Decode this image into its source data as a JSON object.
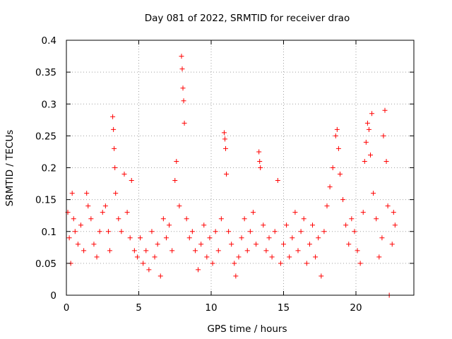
{
  "chart_data": {
    "type": "scatter",
    "title": "Day 081 of 2022, SRMTID for receiver drao",
    "xlabel": "GPS time / hours",
    "ylabel": "SRMTID / TECUs",
    "xlim": [
      0,
      24
    ],
    "ylim": [
      0,
      0.4
    ],
    "x_ticks": [
      0,
      5,
      10,
      15,
      20
    ],
    "x_tick_labels": [
      "0",
      "5",
      "10",
      "15",
      "20"
    ],
    "y_ticks": [
      0,
      0.05,
      0.1,
      0.15,
      0.2,
      0.25,
      0.3,
      0.35,
      0.4
    ],
    "y_tick_labels": [
      "0",
      "0.05",
      "0.1",
      "0.15",
      "0.2",
      "0.25",
      "0.3",
      "0.35",
      "0.4"
    ],
    "grid": true,
    "marker": "plus",
    "colors": {
      "points": "#ff0000",
      "grid": "#a0a0a0",
      "axes": "#000000"
    },
    "series": [
      {
        "name": "SRMTID",
        "points": [
          [
            0.1,
            0.13
          ],
          [
            0.2,
            0.09
          ],
          [
            0.3,
            0.05
          ],
          [
            0.4,
            0.16
          ],
          [
            0.5,
            0.12
          ],
          [
            0.6,
            0.1
          ],
          [
            0.8,
            0.08
          ],
          [
            1.0,
            0.11
          ],
          [
            1.2,
            0.07
          ],
          [
            1.4,
            0.16
          ],
          [
            1.5,
            0.14
          ],
          [
            1.7,
            0.12
          ],
          [
            1.9,
            0.08
          ],
          [
            2.1,
            0.06
          ],
          [
            2.3,
            0.1
          ],
          [
            2.5,
            0.13
          ],
          [
            2.7,
            0.14
          ],
          [
            2.9,
            0.1
          ],
          [
            3.0,
            0.07
          ],
          [
            3.2,
            0.28
          ],
          [
            3.25,
            0.26
          ],
          [
            3.3,
            0.23
          ],
          [
            3.35,
            0.2
          ],
          [
            3.4,
            0.16
          ],
          [
            3.6,
            0.12
          ],
          [
            3.8,
            0.1
          ],
          [
            4.0,
            0.19
          ],
          [
            4.2,
            0.13
          ],
          [
            4.4,
            0.09
          ],
          [
            4.5,
            0.18
          ],
          [
            4.7,
            0.07
          ],
          [
            4.9,
            0.06
          ],
          [
            5.1,
            0.09
          ],
          [
            5.3,
            0.05
          ],
          [
            5.5,
            0.07
          ],
          [
            5.7,
            0.04
          ],
          [
            5.9,
            0.1
          ],
          [
            6.1,
            0.06
          ],
          [
            6.3,
            0.08
          ],
          [
            6.5,
            0.03
          ],
          [
            6.7,
            0.12
          ],
          [
            6.9,
            0.09
          ],
          [
            7.1,
            0.11
          ],
          [
            7.3,
            0.07
          ],
          [
            7.5,
            0.18
          ],
          [
            7.6,
            0.21
          ],
          [
            7.8,
            0.14
          ],
          [
            7.95,
            0.375
          ],
          [
            8.0,
            0.355
          ],
          [
            8.05,
            0.325
          ],
          [
            8.1,
            0.305
          ],
          [
            8.15,
            0.27
          ],
          [
            8.3,
            0.12
          ],
          [
            8.5,
            0.09
          ],
          [
            8.7,
            0.1
          ],
          [
            8.9,
            0.07
          ],
          [
            9.1,
            0.04
          ],
          [
            9.3,
            0.08
          ],
          [
            9.5,
            0.11
          ],
          [
            9.7,
            0.06
          ],
          [
            9.9,
            0.09
          ],
          [
            10.1,
            0.05
          ],
          [
            10.3,
            0.1
          ],
          [
            10.5,
            0.07
          ],
          [
            10.7,
            0.12
          ],
          [
            10.9,
            0.255
          ],
          [
            10.95,
            0.245
          ],
          [
            11.0,
            0.23
          ],
          [
            11.05,
            0.19
          ],
          [
            11.2,
            0.1
          ],
          [
            11.4,
            0.08
          ],
          [
            11.6,
            0.05
          ],
          [
            11.7,
            0.03
          ],
          [
            11.9,
            0.06
          ],
          [
            12.1,
            0.09
          ],
          [
            12.3,
            0.12
          ],
          [
            12.5,
            0.07
          ],
          [
            12.7,
            0.1
          ],
          [
            12.9,
            0.13
          ],
          [
            13.1,
            0.08
          ],
          [
            13.3,
            0.225
          ],
          [
            13.35,
            0.21
          ],
          [
            13.4,
            0.2
          ],
          [
            13.6,
            0.11
          ],
          [
            13.8,
            0.07
          ],
          [
            14.0,
            0.09
          ],
          [
            14.2,
            0.06
          ],
          [
            14.4,
            0.1
          ],
          [
            14.6,
            0.18
          ],
          [
            14.8,
            0.05
          ],
          [
            15.0,
            0.08
          ],
          [
            15.2,
            0.11
          ],
          [
            15.4,
            0.06
          ],
          [
            15.6,
            0.09
          ],
          [
            15.8,
            0.13
          ],
          [
            16.0,
            0.07
          ],
          [
            16.2,
            0.1
          ],
          [
            16.4,
            0.12
          ],
          [
            16.6,
            0.05
          ],
          [
            16.8,
            0.08
          ],
          [
            17.0,
            0.11
          ],
          [
            17.2,
            0.06
          ],
          [
            17.4,
            0.09
          ],
          [
            17.6,
            0.03
          ],
          [
            17.8,
            0.1
          ],
          [
            18.0,
            0.14
          ],
          [
            18.2,
            0.17
          ],
          [
            18.4,
            0.2
          ],
          [
            18.6,
            0.25
          ],
          [
            18.7,
            0.26
          ],
          [
            18.8,
            0.23
          ],
          [
            18.9,
            0.19
          ],
          [
            19.1,
            0.15
          ],
          [
            19.3,
            0.11
          ],
          [
            19.5,
            0.08
          ],
          [
            19.7,
            0.12
          ],
          [
            19.9,
            0.1
          ],
          [
            20.1,
            0.07
          ],
          [
            20.3,
            0.05
          ],
          [
            20.5,
            0.13
          ],
          [
            20.6,
            0.21
          ],
          [
            20.7,
            0.24
          ],
          [
            20.8,
            0.27
          ],
          [
            20.9,
            0.26
          ],
          [
            21.0,
            0.22
          ],
          [
            21.1,
            0.285
          ],
          [
            21.2,
            0.16
          ],
          [
            21.4,
            0.12
          ],
          [
            21.6,
            0.06
          ],
          [
            21.8,
            0.09
          ],
          [
            21.9,
            0.25
          ],
          [
            22.0,
            0.29
          ],
          [
            22.1,
            0.21
          ],
          [
            22.2,
            0.14
          ],
          [
            22.3,
            0.0
          ],
          [
            22.5,
            0.08
          ],
          [
            22.6,
            0.13
          ],
          [
            22.7,
            0.11
          ]
        ]
      }
    ]
  }
}
